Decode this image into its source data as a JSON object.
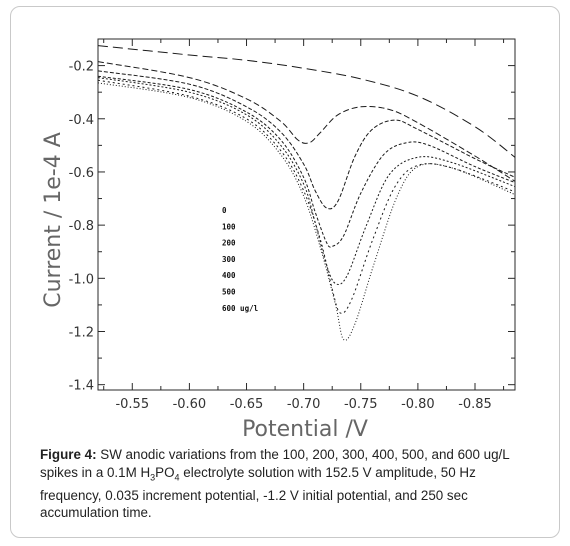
{
  "chart_data": {
    "type": "line",
    "xlabel": "Potential /V",
    "ylabel": "Current / 1e-4 A",
    "xlim": [
      -0.52,
      -0.885
    ],
    "ylim": [
      -1.42,
      -0.1
    ],
    "x_ticks": [
      -0.55,
      -0.6,
      -0.65,
      -0.7,
      -0.75,
      -0.8,
      -0.85
    ],
    "x_tick_labels": [
      "-0.55",
      "-0.60",
      "-0.65",
      "-0.70",
      "-0.75",
      "-0.80",
      "-0.85"
    ],
    "y_ticks": [
      -0.2,
      -0.4,
      -0.6,
      -0.8,
      -1.0,
      -1.2,
      -1.4
    ],
    "y_tick_labels": [
      "-0.2",
      "-0.4",
      "-0.6",
      "-0.8",
      "-1.0",
      "-1.2",
      "-1.4"
    ],
    "legend_title": "0",
    "legend_position": "left-center",
    "series": [
      {
        "name": "0",
        "dash": "10,5",
        "points": [
          [
            -0.52,
            -0.125
          ],
          [
            -0.6,
            -0.16
          ],
          [
            -0.65,
            -0.18
          ],
          [
            -0.7,
            -0.21
          ],
          [
            -0.75,
            -0.25
          ],
          [
            -0.8,
            -0.315
          ],
          [
            -0.85,
            -0.43
          ],
          [
            -0.885,
            -0.545
          ]
        ]
      },
      {
        "name": "100",
        "dash": "6,3",
        "points": [
          [
            -0.52,
            -0.185
          ],
          [
            -0.6,
            -0.245
          ],
          [
            -0.65,
            -0.325
          ],
          [
            -0.68,
            -0.41
          ],
          [
            -0.695,
            -0.48
          ],
          [
            -0.705,
            -0.49
          ],
          [
            -0.715,
            -0.45
          ],
          [
            -0.73,
            -0.385
          ],
          [
            -0.75,
            -0.355
          ],
          [
            -0.775,
            -0.365
          ],
          [
            -0.8,
            -0.415
          ],
          [
            -0.85,
            -0.54
          ],
          [
            -0.885,
            -0.635
          ]
        ]
      },
      {
        "name": "200",
        "dash": "4,2",
        "points": [
          [
            -0.52,
            -0.22
          ],
          [
            -0.6,
            -0.27
          ],
          [
            -0.65,
            -0.355
          ],
          [
            -0.68,
            -0.45
          ],
          [
            -0.7,
            -0.57
          ],
          [
            -0.71,
            -0.67
          ],
          [
            -0.72,
            -0.735
          ],
          [
            -0.73,
            -0.71
          ],
          [
            -0.745,
            -0.54
          ],
          [
            -0.76,
            -0.44
          ],
          [
            -0.78,
            -0.405
          ],
          [
            -0.8,
            -0.44
          ],
          [
            -0.85,
            -0.55
          ],
          [
            -0.885,
            -0.62
          ]
        ]
      },
      {
        "name": "300",
        "dash": "3,2",
        "points": [
          [
            -0.52,
            -0.24
          ],
          [
            -0.6,
            -0.29
          ],
          [
            -0.65,
            -0.375
          ],
          [
            -0.68,
            -0.48
          ],
          [
            -0.7,
            -0.62
          ],
          [
            -0.71,
            -0.75
          ],
          [
            -0.72,
            -0.865
          ],
          [
            -0.725,
            -0.88
          ],
          [
            -0.735,
            -0.84
          ],
          [
            -0.75,
            -0.68
          ],
          [
            -0.77,
            -0.535
          ],
          [
            -0.79,
            -0.49
          ],
          [
            -0.81,
            -0.5
          ],
          [
            -0.85,
            -0.58
          ],
          [
            -0.885,
            -0.64
          ]
        ]
      },
      {
        "name": "400",
        "dash": "2,2",
        "points": [
          [
            -0.52,
            -0.245
          ],
          [
            -0.6,
            -0.3
          ],
          [
            -0.65,
            -0.385
          ],
          [
            -0.68,
            -0.5
          ],
          [
            -0.7,
            -0.645
          ],
          [
            -0.71,
            -0.79
          ],
          [
            -0.72,
            -0.95
          ],
          [
            -0.728,
            -1.02
          ],
          [
            -0.738,
            -0.99
          ],
          [
            -0.755,
            -0.8
          ],
          [
            -0.775,
            -0.61
          ],
          [
            -0.8,
            -0.545
          ],
          [
            -0.83,
            -0.565
          ],
          [
            -0.885,
            -0.655
          ]
        ]
      },
      {
        "name": "500",
        "dash": "2,3",
        "points": [
          [
            -0.52,
            -0.255
          ],
          [
            -0.6,
            -0.315
          ],
          [
            -0.65,
            -0.4
          ],
          [
            -0.68,
            -0.52
          ],
          [
            -0.7,
            -0.67
          ],
          [
            -0.715,
            -0.86
          ],
          [
            -0.725,
            -1.04
          ],
          [
            -0.732,
            -1.13
          ],
          [
            -0.742,
            -1.08
          ],
          [
            -0.76,
            -0.86
          ],
          [
            -0.78,
            -0.655
          ],
          [
            -0.8,
            -0.575
          ],
          [
            -0.83,
            -0.585
          ],
          [
            -0.885,
            -0.675
          ]
        ]
      },
      {
        "name": "600 ug/l",
        "dash": "1,2",
        "points": [
          [
            -0.52,
            -0.265
          ],
          [
            -0.6,
            -0.32
          ],
          [
            -0.65,
            -0.41
          ],
          [
            -0.68,
            -0.535
          ],
          [
            -0.7,
            -0.69
          ],
          [
            -0.715,
            -0.89
          ],
          [
            -0.728,
            -1.1
          ],
          [
            -0.735,
            -1.23
          ],
          [
            -0.745,
            -1.17
          ],
          [
            -0.762,
            -0.94
          ],
          [
            -0.782,
            -0.69
          ],
          [
            -0.8,
            -0.58
          ],
          [
            -0.83,
            -0.585
          ],
          [
            -0.885,
            -0.685
          ]
        ]
      }
    ]
  },
  "caption": {
    "figure_label": "Figure 4:",
    "text_before_sub": " SW anodic variations from the 100, 200, 300, 400, 500, and 600 ug/L spikes in a 0.1M H",
    "sub1": "3",
    "text_mid": "PO",
    "sub2": "4",
    "text_after_sub": " electrolyte solution with 152.5 V amplitude, 50 Hz frequency, 0.035 increment potential, -1.2 V initial potential, and 250 sec accumulation time."
  }
}
